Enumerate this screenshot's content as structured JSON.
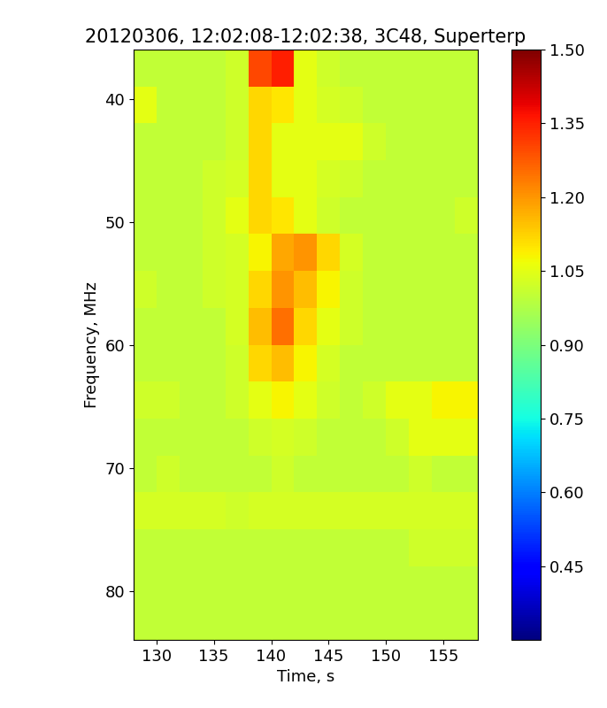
{
  "chart_data": {
    "type": "heatmap",
    "title": "20120306, 12:02:08-12:02:38, 3C48, Superterp",
    "x_label": "Time, s",
    "y_label": "Frequency, MHz",
    "color": "jet",
    "xlim": [
      128,
      158
    ],
    "xticks": [
      130,
      135,
      140,
      145,
      150,
      155
    ],
    "ylim": [
      84,
      36
    ],
    "yticks": [
      40,
      50,
      60,
      70,
      80
    ],
    "x_edges": [
      128,
      130,
      132,
      134,
      136,
      138,
      140,
      142,
      144,
      146,
      148,
      150,
      152,
      154,
      156,
      158
    ],
    "y_edges": [
      36,
      39,
      42,
      45,
      48,
      51,
      54,
      57,
      60,
      63,
      66,
      69,
      72,
      75,
      78,
      81,
      84
    ],
    "cells": [
      [
        1.0,
        1.0,
        1.0,
        1.0,
        1.02,
        1.3,
        1.35,
        1.05,
        1.02,
        1.0,
        1.0,
        1.0,
        1.0,
        1.0,
        1.0
      ],
      [
        1.05,
        1.0,
        1.0,
        1.0,
        1.02,
        1.12,
        1.1,
        1.05,
        1.03,
        1.02,
        1.0,
        1.0,
        1.0,
        1.0,
        1.0
      ],
      [
        1.0,
        1.0,
        1.0,
        1.0,
        1.02,
        1.12,
        1.05,
        1.05,
        1.05,
        1.05,
        1.02,
        1.0,
        1.0,
        1.0,
        1.0
      ],
      [
        1.0,
        1.0,
        1.0,
        1.02,
        1.03,
        1.12,
        1.05,
        1.05,
        1.03,
        1.02,
        1.0,
        1.0,
        1.0,
        1.0,
        1.0
      ],
      [
        1.0,
        1.0,
        1.0,
        1.02,
        1.05,
        1.12,
        1.1,
        1.05,
        1.02,
        1.0,
        1.0,
        1.0,
        1.0,
        1.0,
        1.02
      ],
      [
        1.0,
        1.0,
        1.0,
        1.02,
        1.03,
        1.08,
        1.18,
        1.2,
        1.12,
        1.03,
        1.0,
        1.0,
        1.0,
        1.0,
        1.0
      ],
      [
        1.02,
        1.0,
        1.0,
        1.02,
        1.03,
        1.12,
        1.2,
        1.15,
        1.08,
        1.02,
        1.0,
        1.0,
        1.0,
        1.0,
        1.0
      ],
      [
        1.0,
        1.0,
        1.0,
        1.0,
        1.03,
        1.15,
        1.25,
        1.12,
        1.05,
        1.02,
        1.0,
        1.0,
        1.0,
        1.0,
        1.0
      ],
      [
        1.0,
        1.0,
        1.0,
        1.0,
        1.02,
        1.12,
        1.15,
        1.08,
        1.03,
        1.0,
        1.0,
        1.0,
        1.0,
        1.0,
        1.0
      ],
      [
        1.02,
        1.02,
        1.0,
        1.0,
        1.02,
        1.05,
        1.08,
        1.05,
        1.02,
        1.0,
        1.02,
        1.05,
        1.05,
        1.08,
        1.08
      ],
      [
        1.0,
        1.0,
        1.0,
        1.0,
        1.0,
        1.02,
        1.03,
        1.02,
        1.0,
        1.0,
        1.0,
        1.02,
        1.05,
        1.05,
        1.05
      ],
      [
        1.0,
        1.02,
        1.0,
        1.0,
        1.0,
        1.0,
        1.02,
        1.0,
        1.0,
        1.0,
        1.0,
        1.0,
        1.02,
        1.0,
        1.0
      ],
      [
        1.03,
        1.03,
        1.03,
        1.03,
        1.02,
        1.03,
        1.03,
        1.03,
        1.03,
        1.03,
        1.03,
        1.03,
        1.03,
        1.03,
        1.03
      ],
      [
        1.0,
        1.0,
        1.0,
        1.0,
        1.0,
        1.0,
        1.0,
        1.0,
        1.0,
        1.0,
        1.0,
        1.0,
        1.02,
        1.02,
        1.02
      ],
      [
        1.0,
        1.0,
        1.0,
        1.0,
        1.0,
        1.0,
        1.0,
        1.0,
        1.0,
        1.0,
        1.0,
        1.0,
        1.0,
        1.0,
        1.0
      ],
      [
        1.0,
        1.0,
        1.0,
        1.0,
        1.0,
        1.0,
        1.0,
        1.0,
        1.0,
        1.0,
        1.0,
        1.0,
        1.0,
        1.0,
        1.0
      ]
    ],
    "colorbar_lim": [
      0.3,
      1.5
    ],
    "colorbar_ticks": [
      0.45,
      {
        "value": 0.6,
        "label": "0.60"
      },
      0.75,
      {
        "value": 0.9,
        "label": "0.90"
      },
      1.05,
      {
        "value": 1.2,
        "label": "1.20"
      },
      1.35,
      {
        "value": 1.5,
        "label": "1.50"
      }
    ]
  }
}
